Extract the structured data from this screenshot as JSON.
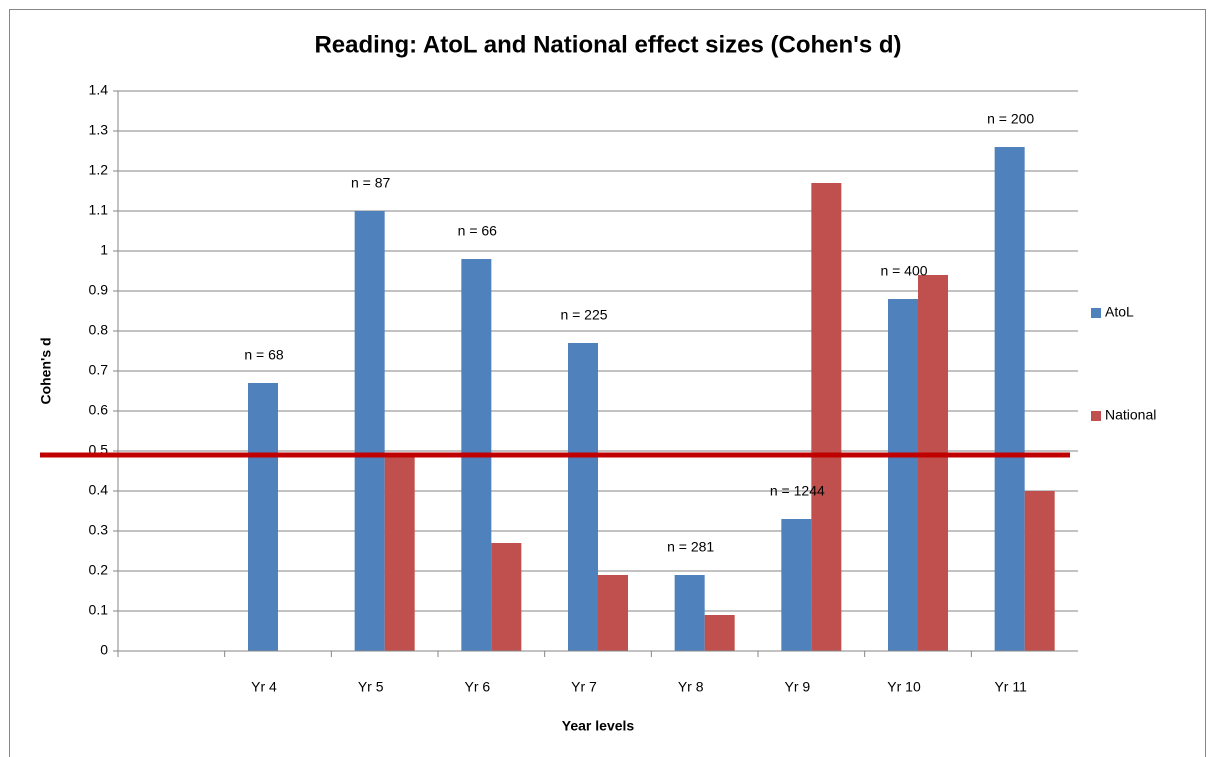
{
  "chart_data": {
    "type": "bar",
    "title": "Reading:  AtoL and National effect sizes (Cohen's d)",
    "x_label": "Year levels",
    "y_label": "Cohen's d",
    "categories": [
      null,
      "Yr 4",
      "Yr 5",
      "Yr 6",
      "Yr 7",
      "Yr 8",
      "Yr 9",
      "Yr 10",
      "Yr 11"
    ],
    "series": [
      {
        "name": "AtoL",
        "color": "#4f81bd",
        "values": [
          null,
          0.67,
          1.1,
          0.98,
          0.77,
          0.19,
          0.33,
          0.88,
          1.26
        ]
      },
      {
        "name": "National",
        "color": "#c0504d",
        "values": [
          null,
          null,
          0.49,
          0.27,
          0.19,
          0.09,
          1.17,
          0.94,
          0.4
        ]
      }
    ],
    "annotations": [
      null,
      "n = 68",
      "n = 87",
      "n = 66",
      "n = 225",
      "n = 281",
      "n = 1244",
      "n = 400",
      "n = 200"
    ],
    "reference_line": {
      "value": 0.49,
      "color": "#c00000"
    },
    "ylim": [
      0,
      1.4
    ],
    "yticks": [
      0,
      0.1,
      0.2,
      0.3,
      0.4,
      0.5,
      0.6,
      0.7,
      0.8,
      0.9,
      1,
      1.1,
      1.2,
      1.3,
      1.4
    ],
    "grid": true,
    "legend": "right"
  }
}
